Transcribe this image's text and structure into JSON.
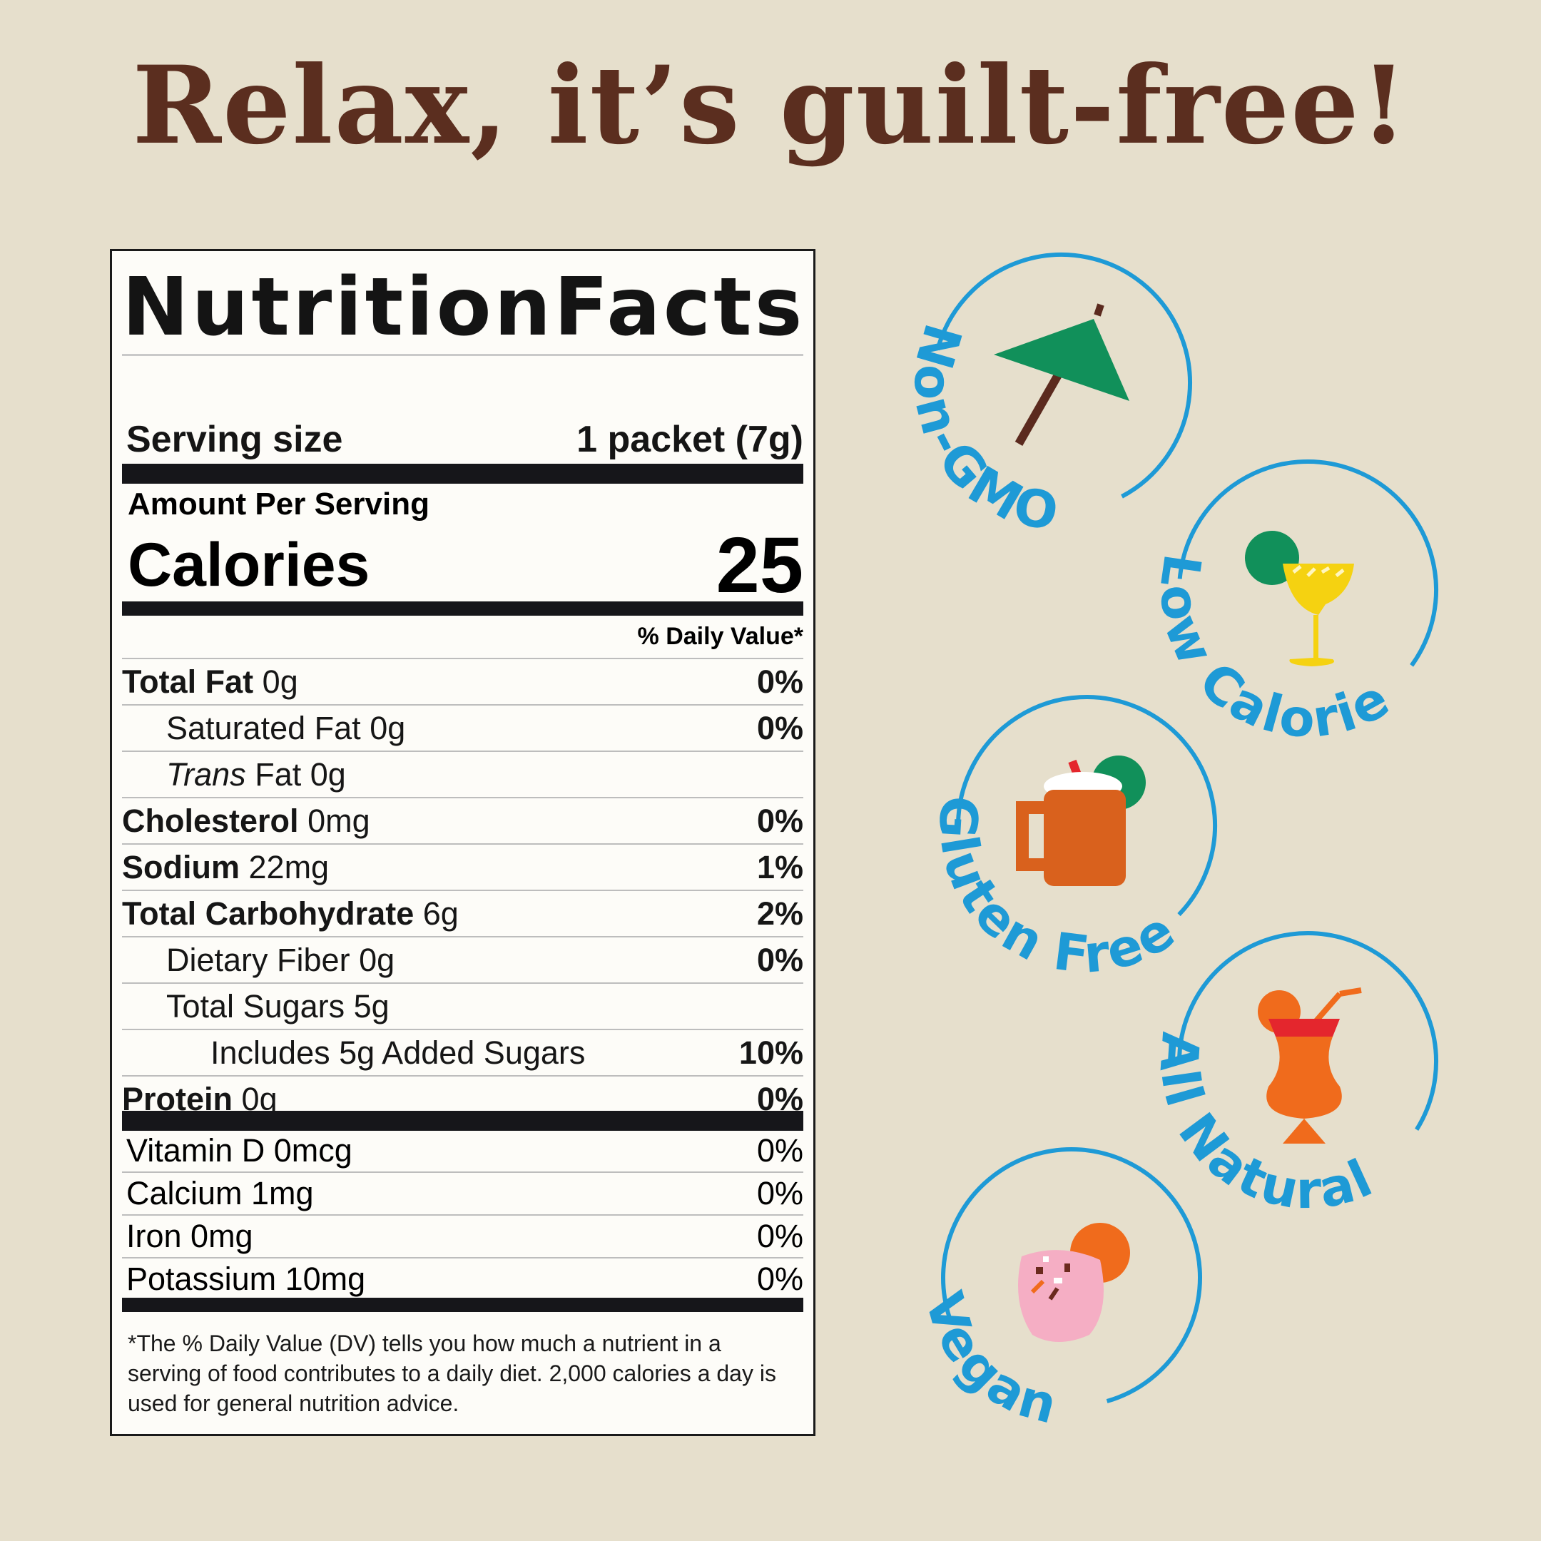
{
  "headline": "Relax, it’s guilt-free!",
  "nutrition": {
    "title_word1": "Nutrition",
    "title_word2": "Facts",
    "serving_label": "Serving size",
    "serving_value": "1 packet (7g)",
    "amount_per_serving": "Amount Per Serving",
    "calories_label": "Calories",
    "calories_value": "25",
    "daily_value_header": "% Daily Value*",
    "rows": [
      {
        "label": "Total Fat",
        "amount": "0g",
        "dv": "0%",
        "indent": 0,
        "bold": true
      },
      {
        "label": "Saturated Fat",
        "amount": "0g",
        "dv": "0%",
        "indent": 1,
        "bold": false
      },
      {
        "label": "Trans",
        "amount": "Fat 0g",
        "dv": "",
        "indent": 1,
        "bold": false,
        "italic": true
      },
      {
        "label": "Cholesterol",
        "amount": "0mg",
        "dv": "0%",
        "indent": 0,
        "bold": true
      },
      {
        "label": "Sodium",
        "amount": "22mg",
        "dv": "1%",
        "indent": 0,
        "bold": true
      },
      {
        "label": "Total Carbohydrate",
        "amount": "6g",
        "dv": "2%",
        "indent": 0,
        "bold": true
      },
      {
        "label": "Dietary Fiber",
        "amount": "0g",
        "dv": "0%",
        "indent": 1,
        "bold": false
      },
      {
        "label": "Total Sugars",
        "amount": "5g",
        "dv": "",
        "indent": 1,
        "bold": false
      },
      {
        "label": "Includes 5g Added Sugars",
        "amount": "",
        "dv": "10%",
        "indent": 2,
        "bold": false
      },
      {
        "label": "Protein",
        "amount": "0g",
        "dv": "0%",
        "indent": 0,
        "bold": true
      }
    ],
    "vitamins": [
      {
        "label": "Vitamin D 0mcg",
        "dv": "0%"
      },
      {
        "label": "Calcium 1mg",
        "dv": "0%"
      },
      {
        "label": "Iron 0mg",
        "dv": "0%"
      },
      {
        "label": "Potassium 10mg",
        "dv": "0%"
      }
    ],
    "footnote": "*The % Daily Value (DV) tells you how much a nutrient in a serving of food contributes to a daily diet. 2,000 calories a day is used for general nutrition advice."
  },
  "badges": [
    {
      "label": "Non-GMO",
      "icon": "cocktail-umbrella-icon"
    },
    {
      "label": "Low Calorie",
      "icon": "margarita-glass-icon"
    },
    {
      "label": "Gluten Free",
      "icon": "mule-mug-icon"
    },
    {
      "label": "All Natural",
      "icon": "hurricane-glass-icon"
    },
    {
      "label": "Vegan",
      "icon": "pink-tumbler-icon"
    }
  ],
  "colors": {
    "background": "#e6dfcc",
    "headline": "#5b2e1f",
    "badge_blue": "#1e9ad6",
    "label_ink": "#16161a"
  }
}
